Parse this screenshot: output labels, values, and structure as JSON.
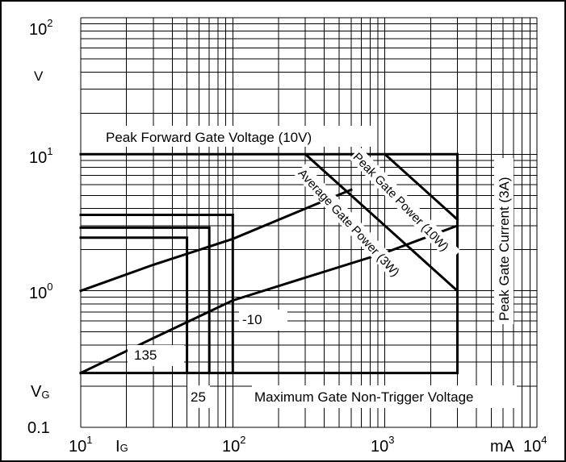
{
  "chart_data": {
    "type": "line",
    "x_scale": "log",
    "y_scale": "log",
    "xlim": [
      10,
      10000
    ],
    "ylim": [
      0.1,
      100
    ],
    "grid": true,
    "x_axis": {
      "unit_label": "mA",
      "variable_label": "I",
      "variable_sub": "G",
      "ticks": [
        {
          "value": 10,
          "base": "10",
          "exp": "1"
        },
        {
          "value": 100,
          "base": "10",
          "exp": "2"
        },
        {
          "value": 1000,
          "base": "10",
          "exp": "3"
        },
        {
          "value": 10000,
          "base": "10",
          "exp": "4"
        }
      ]
    },
    "y_axis": {
      "unit_label": "V",
      "variable_label": "V",
      "variable_sub": "G",
      "ticks": [
        {
          "value": 0.1,
          "text": "0.1"
        },
        {
          "value": 1,
          "base": "10",
          "exp": "0"
        },
        {
          "value": 10,
          "base": "10",
          "exp": "1"
        },
        {
          "value": 100,
          "base": "10",
          "exp": "2"
        }
      ]
    },
    "annotations": {
      "peak_forward_gate_voltage": "Peak Forward Gate Voltage (10V)",
      "peak_gate_power": "Peak Gate Power (10W)",
      "average_gate_power": "Average Gate Power (3W)",
      "peak_gate_current": "Peak Gate Current (3A)",
      "max_non_trigger_voltage": "Maximum Gate Non-Trigger Voltage",
      "temp_minus10": "-10",
      "temp_25": "25",
      "temp_135": "135"
    },
    "series": [
      {
        "role": "peak_forward_gate_voltage",
        "x": [
          10,
          3000
        ],
        "y": [
          10,
          10
        ]
      },
      {
        "role": "peak_gate_current",
        "x": [
          3000,
          3000
        ],
        "y": [
          0.25,
          10
        ]
      },
      {
        "role": "max_non_trigger_voltage",
        "x": [
          10,
          3000
        ],
        "y": [
          0.25,
          0.25
        ]
      },
      {
        "role": "peak_gate_power",
        "x": [
          1000,
          3000
        ],
        "y": [
          10,
          3.33
        ]
      },
      {
        "role": "average_gate_power",
        "x": [
          300,
          3000
        ],
        "y": [
          10,
          1
        ]
      },
      {
        "role": "gate_characteristic_upper",
        "x": [
          10,
          30,
          100,
          300,
          600
        ],
        "y": [
          1.0,
          1.55,
          2.4,
          4.0,
          5.5
        ]
      },
      {
        "role": "gate_characteristic_lower",
        "x": [
          10,
          30,
          100,
          300,
          1000,
          3000
        ],
        "y": [
          0.25,
          0.45,
          0.85,
          1.25,
          1.9,
          3.0
        ]
      },
      {
        "role": "trigger_region_135",
        "x": [
          10,
          50,
          50
        ],
        "y": [
          2.45,
          2.45,
          0.25
        ]
      },
      {
        "role": "trigger_region_25",
        "x": [
          10,
          70,
          70
        ],
        "y": [
          2.9,
          2.9,
          0.25
        ]
      },
      {
        "role": "trigger_region_minus10",
        "x": [
          10,
          100,
          100
        ],
        "y": [
          3.6,
          3.6,
          0.25
        ]
      }
    ]
  }
}
